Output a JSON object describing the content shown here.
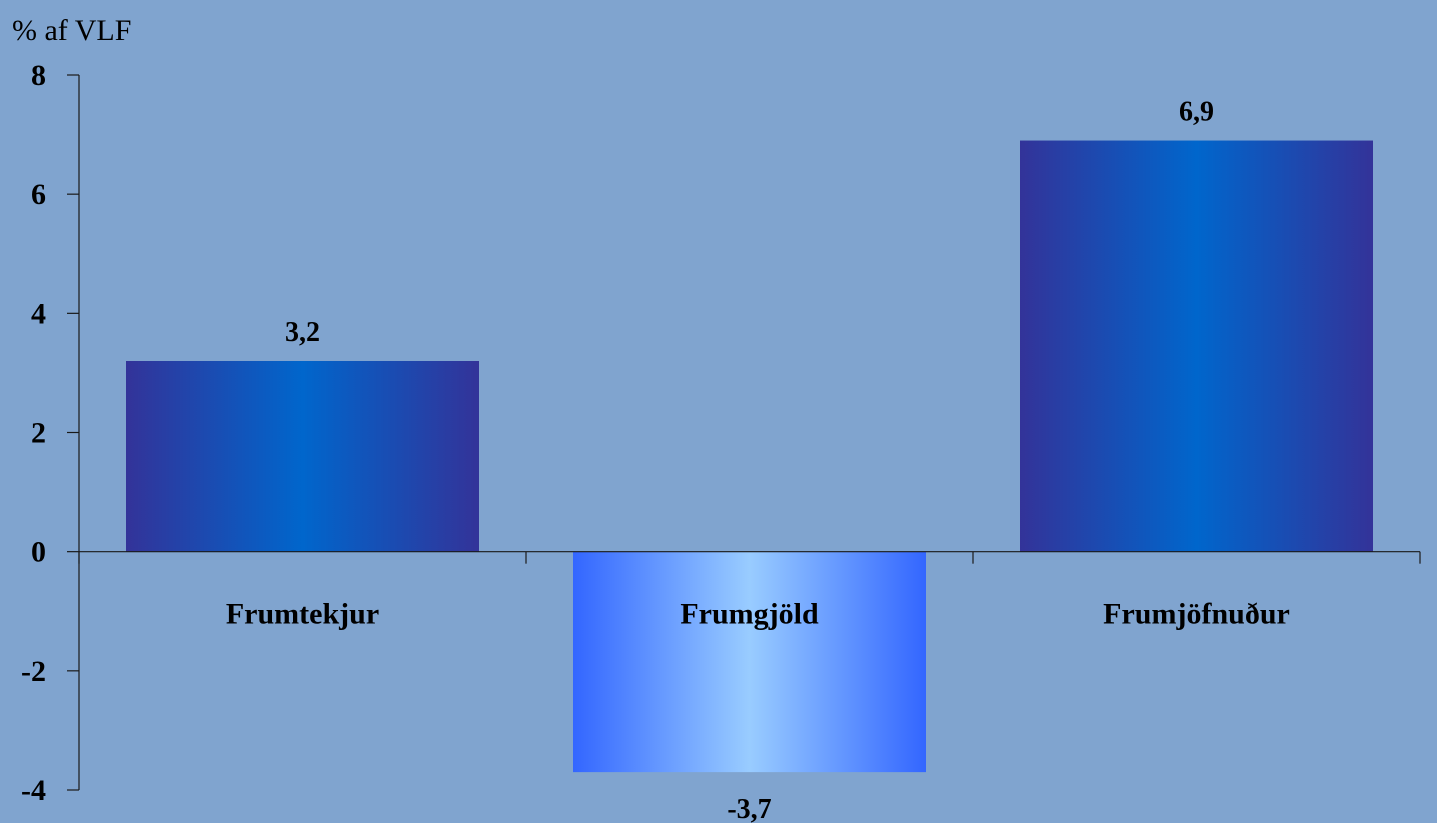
{
  "chart_data": {
    "type": "bar",
    "ylabel": "% af VLF",
    "categories": [
      "Frumtekjur",
      "Frumgjöld",
      "Frumjöfnuður"
    ],
    "values": [
      3.2,
      -3.7,
      6.9
    ],
    "value_labels": [
      "3,2",
      "-3,7",
      "6,9"
    ],
    "ylim": [
      -4,
      8
    ],
    "yticks": [
      8,
      6,
      4,
      2,
      0,
      -2,
      -4
    ],
    "ytick_labels": [
      "8",
      "6",
      "4",
      "2",
      "0",
      "-2",
      "-4"
    ],
    "grid": false,
    "legend": "none",
    "colors": {
      "background": "#80a4cf",
      "positive_edge": "#333399",
      "positive_center": "#0066cc",
      "negative_edge": "#3366ff",
      "negative_center": "#99ccff"
    }
  }
}
